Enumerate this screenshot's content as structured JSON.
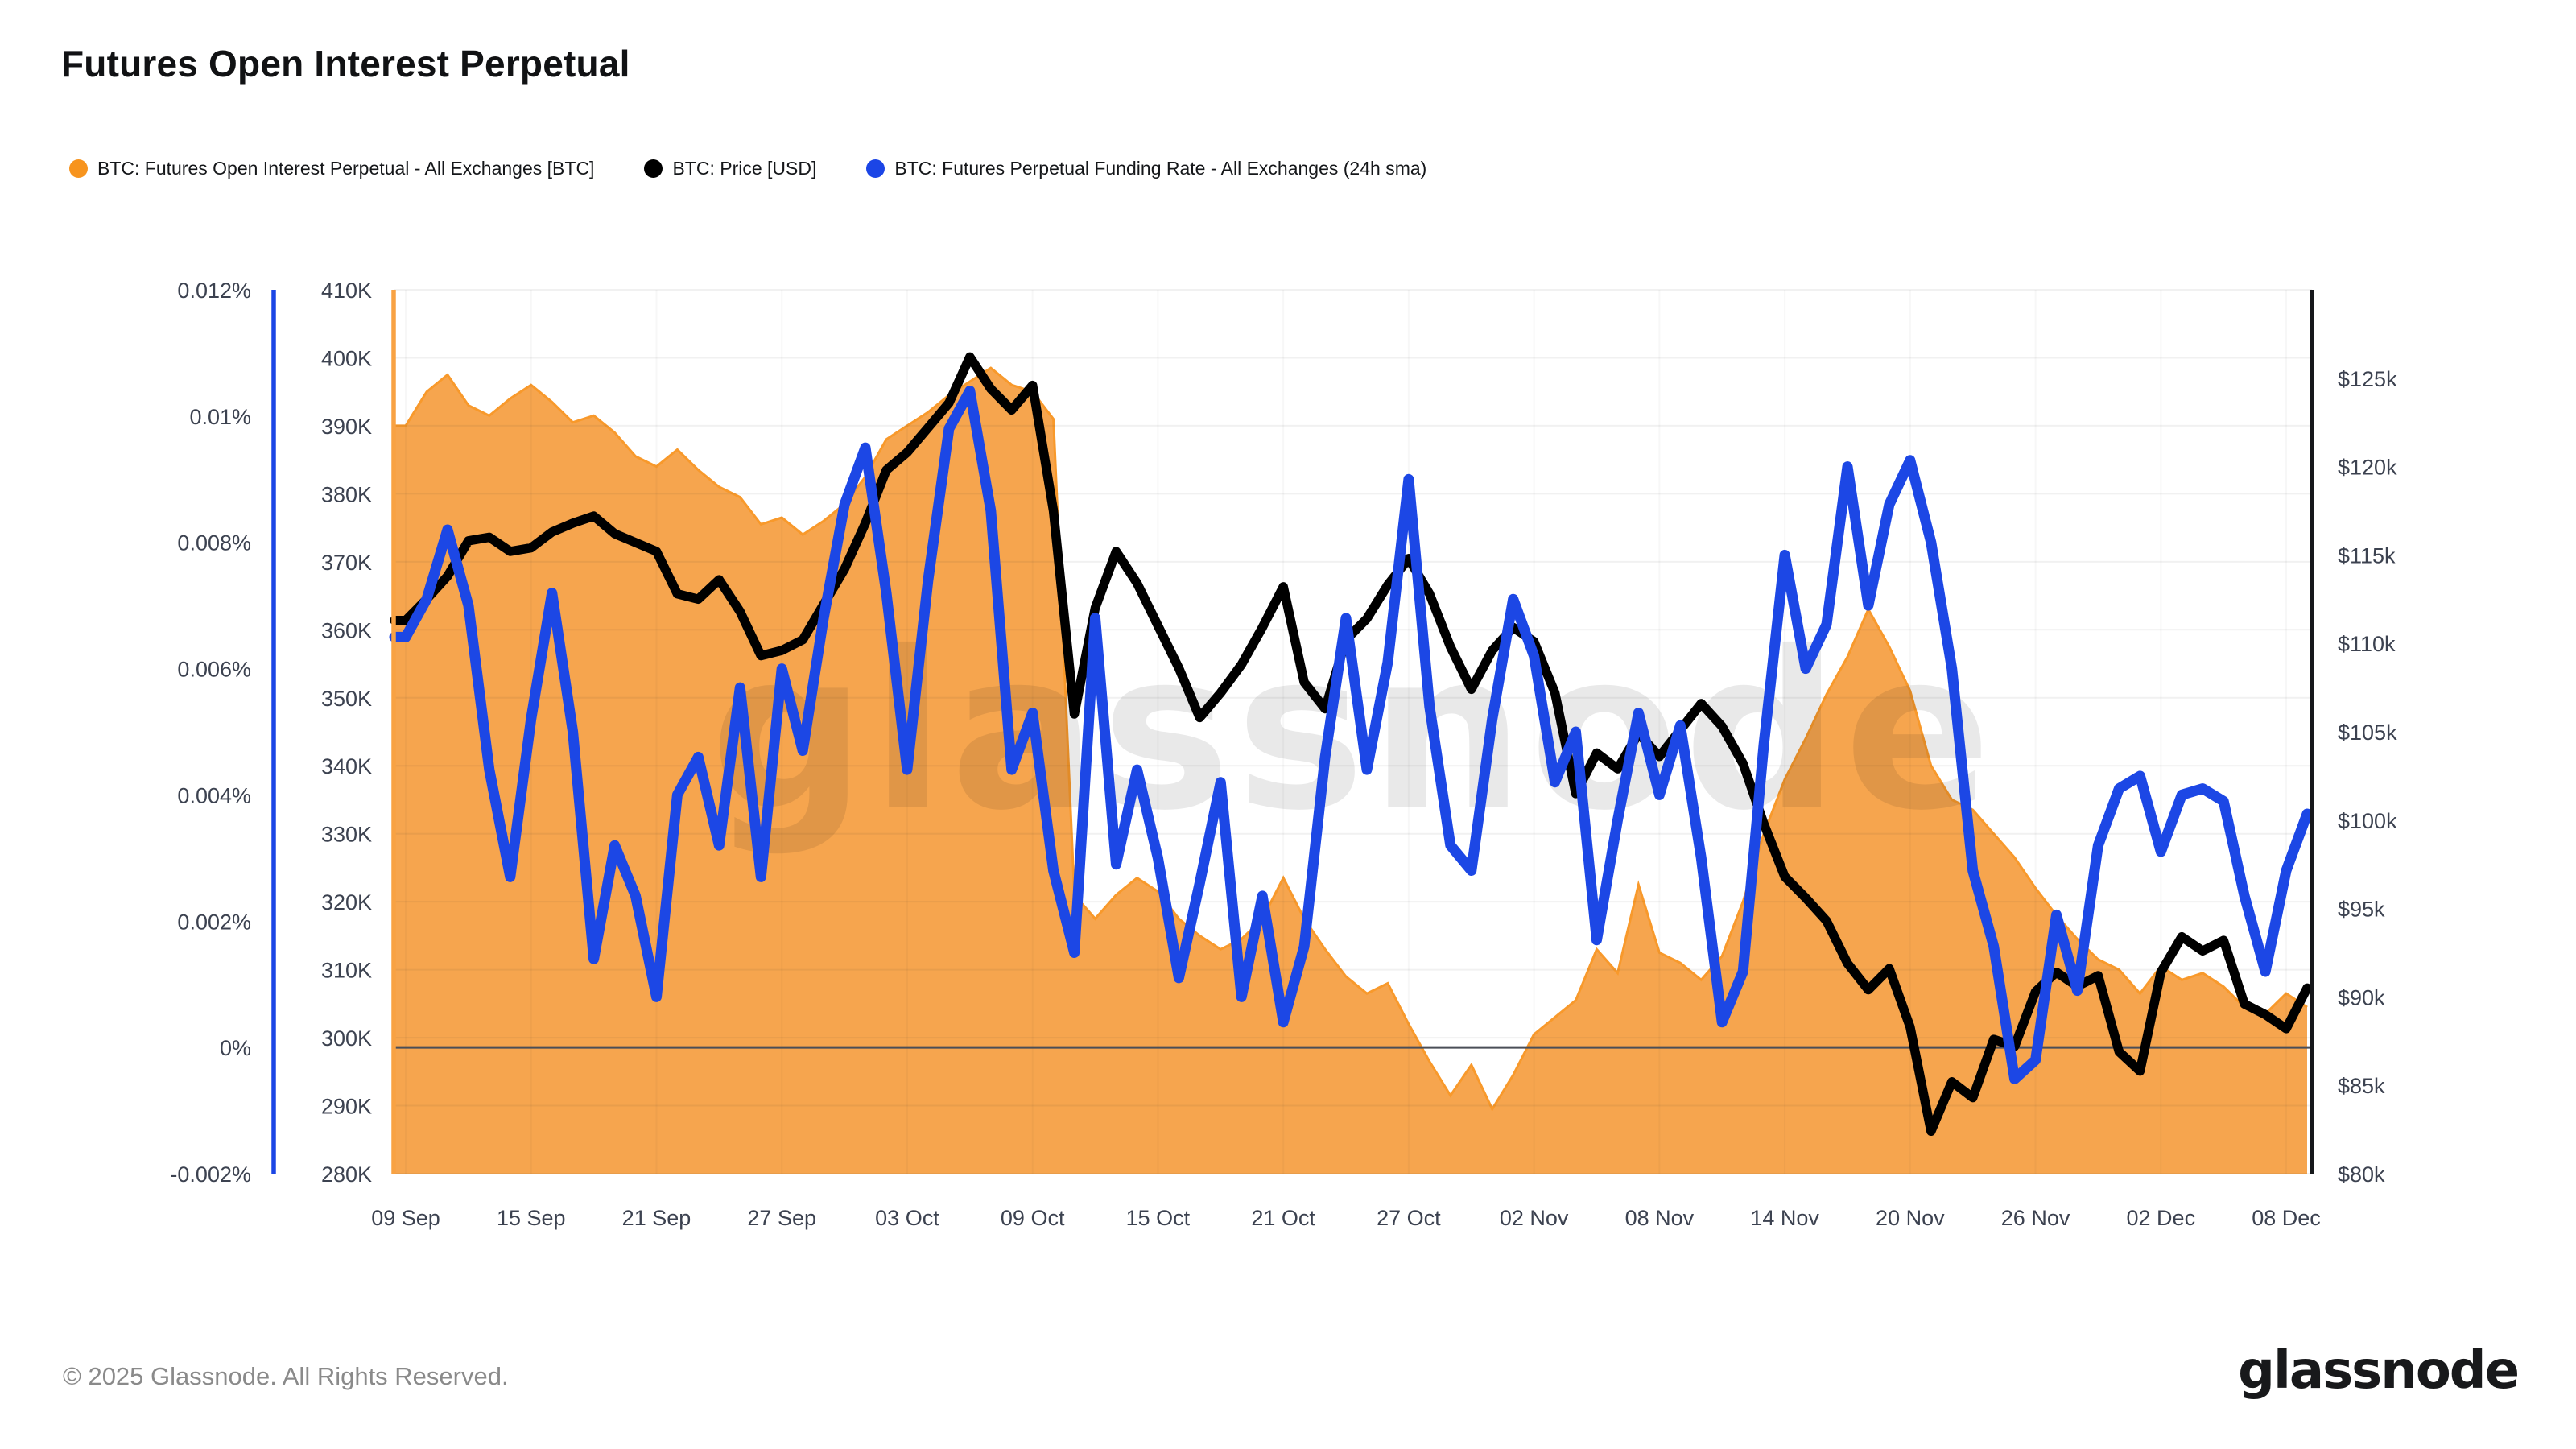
{
  "title": "Futures Open Interest Perpetual",
  "legend": [
    {
      "label": "BTC: Futures Open Interest Perpetual - All Exchanges [BTC]",
      "color": "#F7941E"
    },
    {
      "label": "BTC: Price [USD]",
      "color": "#000000"
    },
    {
      "label": "BTC: Futures Perpetual Funding Rate - All Exchanges (24h sma)",
      "color": "#1B45E6"
    }
  ],
  "watermark": "glassnode",
  "footer": {
    "copyright": "© 2025 Glassnode. All Rights Reserved.",
    "logo": "glassnode"
  },
  "colors": {
    "oi_area_fill": "#F6A54E",
    "oi_area_stroke": "#F8992B",
    "oi_axis_line": "#F8A243",
    "price_line": "#000000",
    "price_axis_line": "#16181B",
    "funding_line": "#1C47E5",
    "funding_axis_line": "#1B46E5",
    "zero_line": "#4A4E57",
    "tick_text": "#3C4250"
  },
  "chart_data": {
    "type": "area+line+line",
    "title": "Futures Open Interest Perpetual",
    "grid": true,
    "legend_position": "top-left",
    "axes": {
      "funding": {
        "side": "far-left",
        "min": -0.002,
        "max": 0.012,
        "ticks": [
          {
            "v": 0.012,
            "label": "0.012%"
          },
          {
            "v": 0.01,
            "label": "0.01%"
          },
          {
            "v": 0.008,
            "label": "0.008%"
          },
          {
            "v": 0.006,
            "label": "0.006%"
          },
          {
            "v": 0.004,
            "label": "0.004%"
          },
          {
            "v": 0.002,
            "label": "0.002%"
          },
          {
            "v": 0,
            "label": "0%"
          },
          {
            "v": -0.002,
            "label": "-0.002%"
          }
        ]
      },
      "oi": {
        "side": "left",
        "min": 280,
        "max": 410,
        "ticks": [
          {
            "v": 410,
            "label": "410K"
          },
          {
            "v": 400,
            "label": "400K"
          },
          {
            "v": 390,
            "label": "390K"
          },
          {
            "v": 380,
            "label": "380K"
          },
          {
            "v": 370,
            "label": "370K"
          },
          {
            "v": 360,
            "label": "360K"
          },
          {
            "v": 350,
            "label": "350K"
          },
          {
            "v": 340,
            "label": "340K"
          },
          {
            "v": 330,
            "label": "330K"
          },
          {
            "v": 320,
            "label": "320K"
          },
          {
            "v": 310,
            "label": "310K"
          },
          {
            "v": 300,
            "label": "300K"
          },
          {
            "v": 290,
            "label": "290K"
          },
          {
            "v": 280,
            "label": "280K"
          }
        ]
      },
      "price": {
        "side": "right",
        "min": 80,
        "max": 130,
        "ticks": [
          {
            "v": 125,
            "label": "$125k"
          },
          {
            "v": 120,
            "label": "$120k"
          },
          {
            "v": 115,
            "label": "$115k"
          },
          {
            "v": 110,
            "label": "$110k"
          },
          {
            "v": 105,
            "label": "$105k"
          },
          {
            "v": 100,
            "label": "$100k"
          },
          {
            "v": 95,
            "label": "$95k"
          },
          {
            "v": 90,
            "label": "$90k"
          },
          {
            "v": 85,
            "label": "$85k"
          },
          {
            "v": 80,
            "label": "$80k"
          }
        ]
      },
      "x": {
        "ticks": [
          {
            "day": 0,
            "label": "09 Sep"
          },
          {
            "day": 6,
            "label": "15 Sep"
          },
          {
            "day": 12,
            "label": "21 Sep"
          },
          {
            "day": 18,
            "label": "27 Sep"
          },
          {
            "day": 24,
            "label": "03 Oct"
          },
          {
            "day": 30,
            "label": "09 Oct"
          },
          {
            "day": 36,
            "label": "15 Oct"
          },
          {
            "day": 42,
            "label": "21 Oct"
          },
          {
            "day": 48,
            "label": "27 Oct"
          },
          {
            "day": 54,
            "label": "02 Nov"
          },
          {
            "day": 60,
            "label": "08 Nov"
          },
          {
            "day": 66,
            "label": "14 Nov"
          },
          {
            "day": 72,
            "label": "20 Nov"
          },
          {
            "day": 78,
            "label": "26 Nov"
          },
          {
            "day": 84,
            "label": "02 Dec"
          },
          {
            "day": 90,
            "label": "08 Dec"
          }
        ]
      }
    },
    "dates": [
      "09 Sep",
      "10 Sep",
      "11 Sep",
      "12 Sep",
      "13 Sep",
      "14 Sep",
      "15 Sep",
      "16 Sep",
      "17 Sep",
      "18 Sep",
      "19 Sep",
      "20 Sep",
      "21 Sep",
      "22 Sep",
      "23 Sep",
      "24 Sep",
      "25 Sep",
      "26 Sep",
      "27 Sep",
      "28 Sep",
      "29 Sep",
      "30 Sep",
      "01 Oct",
      "02 Oct",
      "03 Oct",
      "04 Oct",
      "05 Oct",
      "06 Oct",
      "07 Oct",
      "08 Oct",
      "09 Oct",
      "10 Oct",
      "11 Oct",
      "12 Oct",
      "13 Oct",
      "14 Oct",
      "15 Oct",
      "16 Oct",
      "17 Oct",
      "18 Oct",
      "19 Oct",
      "20 Oct",
      "21 Oct",
      "22 Oct",
      "23 Oct",
      "24 Oct",
      "25 Oct",
      "26 Oct",
      "27 Oct",
      "28 Oct",
      "29 Oct",
      "30 Oct",
      "31 Oct",
      "01 Nov",
      "02 Nov",
      "03 Nov",
      "04 Nov",
      "05 Nov",
      "06 Nov",
      "07 Nov",
      "08 Nov",
      "09 Nov",
      "10 Nov",
      "11 Nov",
      "12 Nov",
      "13 Nov",
      "14 Nov",
      "15 Nov",
      "16 Nov",
      "17 Nov",
      "18 Nov",
      "19 Nov",
      "20 Nov",
      "21 Nov",
      "22 Nov",
      "23 Nov",
      "24 Nov",
      "25 Nov",
      "26 Nov",
      "27 Nov",
      "28 Nov",
      "29 Nov",
      "30 Nov",
      "01 Dec",
      "02 Dec",
      "03 Dec",
      "04 Dec",
      "05 Dec",
      "06 Dec",
      "07 Dec",
      "08 Dec",
      "09 Dec"
    ],
    "series": [
      {
        "name": "BTC: Futures Open Interest Perpetual - All Exchanges [BTC]",
        "type": "area",
        "axis": "oi",
        "unit": "K BTC",
        "values": [
          390,
          395,
          397.5,
          393,
          391.5,
          394,
          396,
          393.5,
          390.5,
          391.5,
          389,
          385.5,
          384,
          386.5,
          383.5,
          381,
          379.5,
          375.5,
          376.5,
          374,
          376,
          378.5,
          382.5,
          388,
          390,
          392,
          394.5,
          396.5,
          398.5,
          396,
          395,
          391,
          321,
          317.5,
          321,
          323.5,
          321.5,
          317.5,
          315,
          313,
          314.5,
          317.5,
          323.5,
          317.5,
          313,
          309,
          306.5,
          308,
          302,
          296.5,
          291.5,
          296,
          289.5,
          294.5,
          300.5,
          303,
          305.5,
          313,
          309.5,
          322.5,
          312.5,
          311,
          308.5,
          312,
          320,
          330,
          338,
          344,
          350.5,
          356,
          363,
          357.5,
          351,
          340,
          335,
          333.5,
          330,
          326.5,
          322,
          318,
          314.5,
          311.5,
          310,
          306.5,
          310.5,
          308.5,
          309.5,
          307.5,
          304.5,
          303.5,
          306.5,
          304.5
        ]
      },
      {
        "name": "BTC: Price [USD]",
        "type": "line",
        "axis": "price",
        "unit": "$k",
        "values": [
          111.3,
          112.5,
          113.8,
          115.8,
          116.0,
          115.2,
          115.4,
          116.3,
          116.8,
          117.2,
          116.2,
          115.7,
          115.2,
          112.8,
          112.5,
          113.6,
          111.8,
          109.3,
          109.6,
          110.2,
          112.2,
          114.2,
          116.8,
          119.8,
          120.8,
          122.2,
          123.6,
          126.2,
          124.4,
          123.2,
          124.6,
          117.5,
          106.0,
          112.0,
          115.2,
          113.4,
          111.0,
          108.6,
          105.8,
          107.2,
          108.8,
          110.9,
          113.2,
          107.8,
          106.3,
          110.2,
          111.4,
          113.3,
          114.8,
          112.8,
          109.8,
          107.4,
          109.6,
          110.9,
          110.1,
          107.2,
          101.5,
          103.8,
          102.9,
          104.9,
          103.6,
          105.1,
          106.6,
          105.3,
          103.2,
          99.8,
          96.8,
          95.6,
          94.3,
          91.9,
          90.4,
          91.6,
          88.3,
          82.4,
          85.2,
          84.3,
          87.6,
          87.2,
          90.3,
          91.4,
          90.6,
          91.2,
          86.9,
          85.8,
          91.4,
          93.4,
          92.6,
          93.2,
          89.6,
          89.0,
          88.2,
          90.5
        ]
      },
      {
        "name": "BTC: Futures Perpetual Funding Rate - All Exchanges (24h sma)",
        "type": "line",
        "axis": "funding",
        "unit": "%",
        "values": [
          0.0065,
          0.0071,
          0.0082,
          0.007,
          0.0044,
          0.0027,
          0.0052,
          0.0072,
          0.005,
          0.0014,
          0.0032,
          0.0024,
          0.0008,
          0.004,
          0.0046,
          0.0032,
          0.0057,
          0.0027,
          0.006,
          0.0047,
          0.0068,
          0.0086,
          0.0095,
          0.0072,
          0.0044,
          0.0074,
          0.0098,
          0.0104,
          0.0085,
          0.0044,
          0.0053,
          0.0028,
          0.0015,
          0.0068,
          0.0029,
          0.0044,
          0.003,
          0.0011,
          0.0026,
          0.0042,
          0.0008,
          0.0024,
          0.0004,
          0.0016,
          0.0046,
          0.0068,
          0.0044,
          0.0061,
          0.009,
          0.0054,
          0.0032,
          0.0028,
          0.0052,
          0.0071,
          0.0062,
          0.0042,
          0.005,
          0.0017,
          0.0036,
          0.0053,
          0.004,
          0.0051,
          0.003,
          0.0004,
          0.0012,
          0.0048,
          0.0078,
          0.006,
          0.0067,
          0.0092,
          0.007,
          0.0086,
          0.0093,
          0.008,
          0.006,
          0.0028,
          0.0016,
          -0.0005,
          -0.0002,
          0.0021,
          0.0009,
          0.0032,
          0.0041,
          0.0043,
          0.0031,
          0.004,
          0.0041,
          0.0039,
          0.0024,
          0.0012,
          0.0028,
          0.0037
        ]
      }
    ]
  }
}
